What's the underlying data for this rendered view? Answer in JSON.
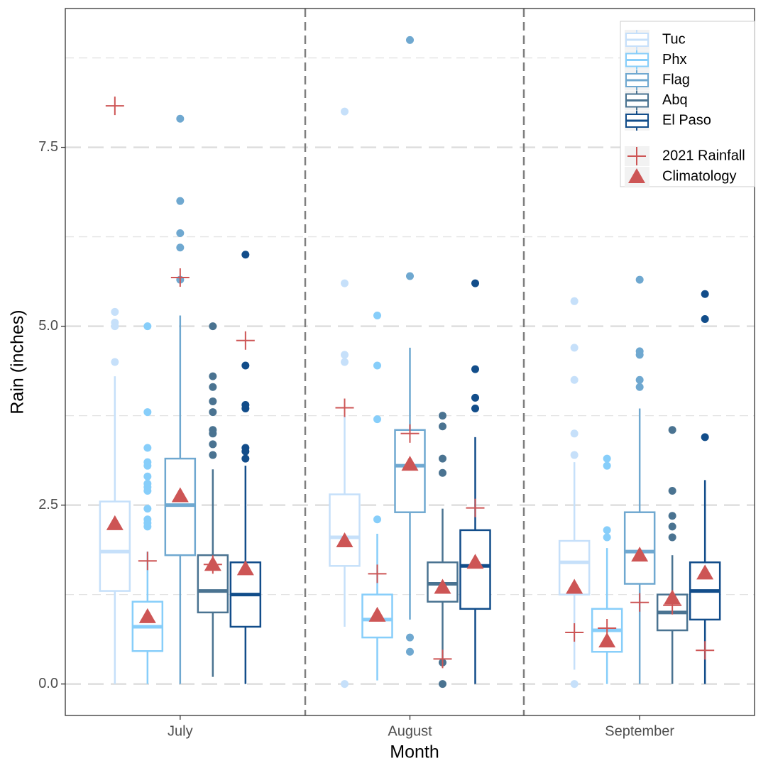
{
  "chart_data": {
    "type": "box",
    "x_label": "Month",
    "y_label": "Rain (inches)",
    "categories": [
      "July",
      "August",
      "September"
    ],
    "ylim": [
      -0.44,
      9.44
    ],
    "yticks": [
      {
        "value": 0,
        "label": "0.0"
      },
      2.5,
      {
        "value": 5,
        "label": "5.0"
      },
      7.5
    ],
    "minor_yticks": [
      1.25,
      3.75,
      6.25,
      8.75
    ],
    "grid": true,
    "legend_position": "top-right",
    "series": [
      {
        "name": "Tuc",
        "color": "#c6e0fa",
        "boxes": [
          {
            "low": 0,
            "q1": 1.3,
            "median": 1.85,
            "q3": 2.55,
            "high": 4.3,
            "outliers": [
              4.5,
              5.0,
              5.05,
              5.2
            ]
          },
          {
            "low": 0.8,
            "q1": 1.65,
            "median": 2.05,
            "q3": 2.65,
            "high": 3.75,
            "outliers": [
              0,
              4.5,
              4.6,
              5.6,
              8.0
            ]
          },
          {
            "low": 0.2,
            "q1": 1.25,
            "median": 1.7,
            "q3": 2.0,
            "high": 3.1,
            "outliers": [
              0,
              3.2,
              3.5,
              4.25,
              4.7,
              5.35
            ]
          }
        ],
        "rainfall": [
          8.08,
          3.86,
          0.72
        ],
        "climatology": [
          2.24,
          2.0,
          1.35
        ]
      },
      {
        "name": "Phx",
        "color": "#87cefa",
        "boxes": [
          {
            "low": 0,
            "q1": 0.46,
            "median": 0.8,
            "q3": 1.15,
            "high": 1.85,
            "outliers": [
              2.2,
              2.25,
              2.3,
              2.45,
              2.7,
              2.75,
              2.8,
              2.9,
              3.05,
              3.1,
              3.3,
              3.8,
              5.0
            ]
          },
          {
            "low": 0.05,
            "q1": 0.65,
            "median": 0.9,
            "q3": 1.25,
            "high": 2.1,
            "outliers": [
              2.3,
              3.7,
              4.45,
              5.15
            ]
          },
          {
            "low": 0,
            "q1": 0.45,
            "median": 0.75,
            "q3": 1.05,
            "high": 1.9,
            "outliers": [
              2.05,
              2.15,
              3.05,
              3.15
            ]
          }
        ],
        "rainfall": [
          1.72,
          1.54,
          0.78
        ],
        "climatology": [
          0.94,
          0.96,
          0.6
        ]
      },
      {
        "name": "Flag",
        "color": "#6fa8d0",
        "boxes": [
          {
            "low": 0,
            "q1": 1.8,
            "median": 2.5,
            "q3": 3.15,
            "high": 5.15,
            "outliers": [
              5.65,
              6.1,
              6.3,
              6.75,
              7.9
            ]
          },
          {
            "low": 0.9,
            "q1": 2.4,
            "median": 3.05,
            "q3": 3.55,
            "high": 4.7,
            "outliers": [
              0.45,
              0.65,
              5.7,
              9.0
            ]
          },
          {
            "low": 0,
            "q1": 1.4,
            "median": 1.85,
            "q3": 2.4,
            "high": 3.85,
            "outliers": [
              4.15,
              4.25,
              4.6,
              4.65,
              5.65
            ]
          }
        ],
        "rainfall": [
          5.68,
          3.5,
          1.14
        ],
        "climatology": [
          2.63,
          3.07,
          1.8
        ]
      },
      {
        "name": "Abq",
        "color": "#4a7391",
        "boxes": [
          {
            "low": 0.1,
            "q1": 1.0,
            "median": 1.3,
            "q3": 1.8,
            "high": 3.0,
            "outliers": [
              3.2,
              3.35,
              3.5,
              3.55,
              3.8,
              3.95,
              4.15,
              4.3,
              5.0
            ]
          },
          {
            "low": 0.35,
            "q1": 1.15,
            "median": 1.4,
            "q3": 1.7,
            "high": 2.45,
            "outliers": [
              0,
              0.3,
              2.95,
              3.15,
              3.6,
              3.75
            ]
          },
          {
            "low": 0,
            "q1": 0.75,
            "median": 1.0,
            "q3": 1.25,
            "high": 1.8,
            "outliers": [
              2.05,
              2.2,
              2.35,
              2.7,
              3.55
            ]
          }
        ],
        "rainfall": [
          1.67,
          0.35,
          1.1
        ],
        "climatology": [
          1.67,
          1.35,
          1.2
        ]
      },
      {
        "name": "El Paso",
        "color": "#124d8a",
        "boxes": [
          {
            "low": 0,
            "q1": 0.8,
            "median": 1.25,
            "q3": 1.7,
            "high": 3.05,
            "outliers": [
              3.15,
              3.25,
              3.3,
              3.85,
              3.9,
              4.45,
              6.0
            ]
          },
          {
            "low": 0,
            "q1": 1.05,
            "median": 1.65,
            "q3": 2.15,
            "high": 3.45,
            "outliers": [
              3.85,
              4.0,
              4.4,
              5.6
            ]
          },
          {
            "low": 0,
            "q1": 0.9,
            "median": 1.3,
            "q3": 1.7,
            "high": 2.85,
            "outliers": [
              3.45,
              5.1,
              5.45
            ]
          }
        ],
        "rainfall": [
          4.8,
          2.46,
          0.47
        ],
        "climatology": [
          1.61,
          1.7,
          1.55
        ]
      }
    ],
    "markers": {
      "rainfall": {
        "name": "2021 Rainfall",
        "color": "#cd5555"
      },
      "climatology": {
        "name": "Climatology",
        "color": "#cd5555"
      }
    }
  }
}
